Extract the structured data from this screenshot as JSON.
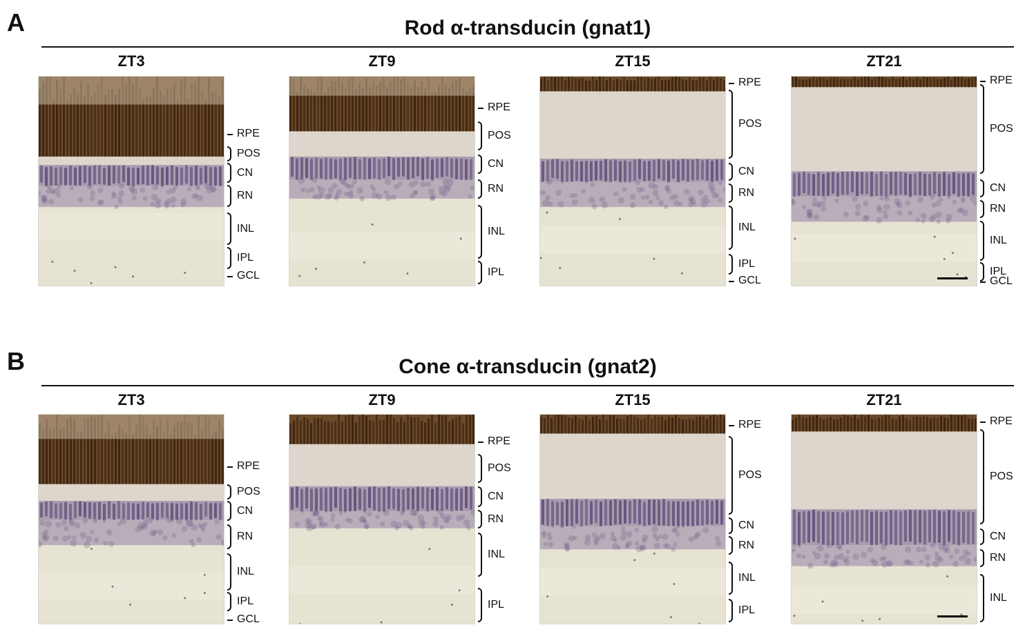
{
  "panels": [
    {
      "letter": "A",
      "title": "Rod α-transducin (gnat1)",
      "columns": [
        {
          "time": "ZT3",
          "layers": [
            "RPE",
            "POS",
            "CN",
            "RN",
            "INL",
            "IPL",
            "GCL"
          ]
        },
        {
          "time": "ZT9",
          "layers": [
            "RPE",
            "POS",
            "CN",
            "RN",
            "INL",
            "IPL"
          ]
        },
        {
          "time": "ZT15",
          "layers": [
            "RPE",
            "POS",
            "CN",
            "RN",
            "INL",
            "IPL",
            "GCL"
          ]
        },
        {
          "time": "ZT21",
          "layers": [
            "RPE",
            "POS",
            "CN",
            "RN",
            "INL",
            "IPL",
            "GCL"
          ]
        }
      ]
    },
    {
      "letter": "B",
      "title": "Cone α-transducin (gnat2)",
      "columns": [
        {
          "time": "ZT3",
          "layers": [
            "RPE",
            "POS",
            "CN",
            "RN",
            "INL",
            "IPL",
            "GCL"
          ]
        },
        {
          "time": "ZT9",
          "layers": [
            "RPE",
            "POS",
            "CN",
            "RN",
            "INL",
            "IPL"
          ]
        },
        {
          "time": "ZT15",
          "layers": [
            "RPE",
            "POS",
            "CN",
            "RN",
            "INL",
            "IPL"
          ]
        },
        {
          "time": "ZT21",
          "layers": [
            "RPE",
            "POS",
            "CN",
            "RN",
            "INL"
          ]
        }
      ]
    }
  ],
  "colors": {
    "pigment": "#3d2410",
    "stain": "#5a4a78",
    "tissue": "#e6e3d3",
    "tissue_light": "#ebe8da",
    "annotation": "#111111"
  }
}
